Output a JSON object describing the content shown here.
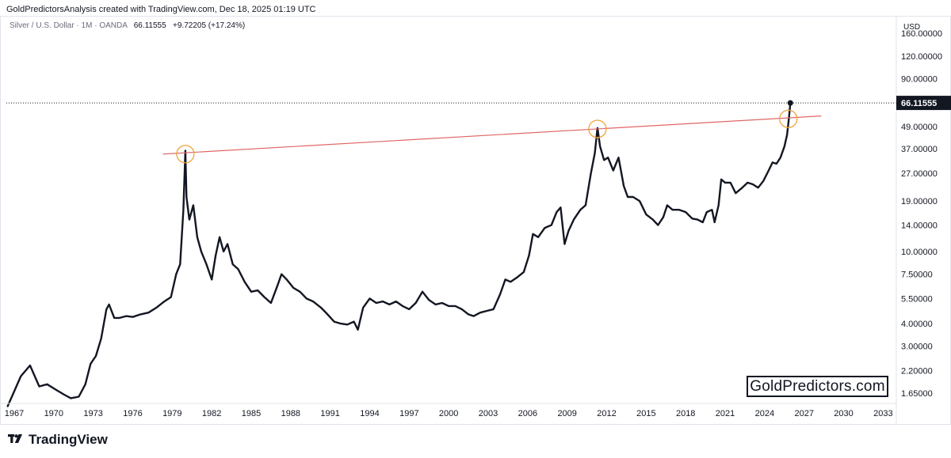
{
  "header": {
    "attribution": "GoldPredictorsAnalysis created with TradingView.com, Dec 18, 2025 01:19 UTC"
  },
  "symbol": {
    "name": "Silver / U.S. Dollar · 1M · OANDA",
    "last": "66.11555",
    "change": "+9.72205 (+17.24%)"
  },
  "currency": "USD",
  "last_price_label": "66.11555",
  "watermark": "GoldPredictors.com",
  "branding": "TradingView",
  "colors": {
    "price_line": "#131722",
    "trendline": "#e06666",
    "circle": "#f0a33b",
    "last_badge_bg": "#131722",
    "grid": "#ffffff"
  },
  "chart_data": {
    "type": "line",
    "scale": "log",
    "x_ticks": [
      "1967",
      "1970",
      "1973",
      "1976",
      "1979",
      "1982",
      "1985",
      "1988",
      "1991",
      "1994",
      "1997",
      "2000",
      "2003",
      "2006",
      "2009",
      "2012",
      "2015",
      "2018",
      "2021",
      "2024",
      "2027",
      "2030",
      "2033"
    ],
    "y_ticks": [
      "160.00000",
      "120.00000",
      "90.00000",
      "66.11555",
      "49.00000",
      "37.00000",
      "27.00000",
      "19.00000",
      "14.00000",
      "10.00000",
      "7.50000",
      "5.50000",
      "4.00000",
      "3.00000",
      "2.20000",
      "1.65000"
    ],
    "series": [
      {
        "x": [
          1966.5,
          1967.5,
          1968.2,
          1968.9,
          1969.5,
          1970.2,
          1970.8,
          1971.3,
          1971.9,
          1972.4,
          1972.8,
          1973.2,
          1973.6,
          1974.0,
          1974.2,
          1974.6,
          1975.0,
          1975.5,
          1976.0,
          1976.6,
          1977.2,
          1977.8,
          1978.4,
          1978.9,
          1979.3,
          1979.6,
          1979.85,
          1980.0,
          1980.08,
          1980.3,
          1980.6,
          1980.9,
          1981.2,
          1981.6,
          1982.0,
          1982.3,
          1982.6,
          1982.9,
          1983.2,
          1983.6,
          1984.0,
          1984.5,
          1985.0,
          1985.5,
          1986.0,
          1986.5,
          1987.0,
          1987.3,
          1987.7,
          1988.2,
          1988.7,
          1989.2,
          1989.7,
          1990.3,
          1990.8,
          1991.3,
          1991.8,
          1992.3,
          1992.8,
          1993.1,
          1993.5,
          1994.0,
          1994.5,
          1995.0,
          1995.5,
          1996.0,
          1996.5,
          1997.0,
          1997.5,
          1998.0,
          1998.5,
          1999.0,
          1999.5,
          2000.0,
          2000.5,
          2001.0,
          2001.5,
          2001.9,
          2002.4,
          2002.9,
          2003.4,
          2003.9,
          2004.3,
          2004.7,
          2005.2,
          2005.7,
          2006.1,
          2006.4,
          2006.8,
          2007.3,
          2007.8,
          2008.2,
          2008.5,
          2008.8,
          2009.1,
          2009.5,
          2010.0,
          2010.4,
          2010.8,
          2011.1,
          2011.3,
          2011.5,
          2011.8,
          2012.1,
          2012.5,
          2012.9,
          2013.3,
          2013.6,
          2014.0,
          2014.5,
          2015.0,
          2015.5,
          2015.9,
          2016.3,
          2016.6,
          2017.0,
          2017.5,
          2018.0,
          2018.5,
          2018.9,
          2019.3,
          2019.6,
          2020.0,
          2020.2,
          2020.5,
          2020.7,
          2021.0,
          2021.4,
          2021.8,
          2022.3,
          2022.7,
          2023.1,
          2023.5,
          2023.9,
          2024.3,
          2024.6,
          2024.9,
          2025.2,
          2025.5,
          2025.7,
          2025.85,
          2025.95
        ],
        "y": [
          1.4,
          2.05,
          2.35,
          1.8,
          1.85,
          1.72,
          1.62,
          1.55,
          1.58,
          1.85,
          2.4,
          2.65,
          3.3,
          4.8,
          5.1,
          4.3,
          4.3,
          4.4,
          4.35,
          4.5,
          4.6,
          4.9,
          5.3,
          5.6,
          7.5,
          8.5,
          17.0,
          36.0,
          20.0,
          15.0,
          18.0,
          12.0,
          10.0,
          8.5,
          7.0,
          9.5,
          12.0,
          10.0,
          11.0,
          8.5,
          8.0,
          6.8,
          6.0,
          6.1,
          5.6,
          5.2,
          6.5,
          7.5,
          7.0,
          6.3,
          6.0,
          5.5,
          5.3,
          4.9,
          4.5,
          4.1,
          4.0,
          3.95,
          4.1,
          3.7,
          4.9,
          5.5,
          5.2,
          5.3,
          5.1,
          5.3,
          5.0,
          4.8,
          5.2,
          6.0,
          5.4,
          5.1,
          5.2,
          5.0,
          5.0,
          4.8,
          4.5,
          4.4,
          4.6,
          4.7,
          4.8,
          5.8,
          7.0,
          6.8,
          7.2,
          7.7,
          9.5,
          12.5,
          12.0,
          13.5,
          14.0,
          16.5,
          17.5,
          11.0,
          13.0,
          15.0,
          17.0,
          18.0,
          27.0,
          35.0,
          48.0,
          38.0,
          32.0,
          33.0,
          28.0,
          33.0,
          23.0,
          20.0,
          20.0,
          19.0,
          16.0,
          15.0,
          14.0,
          15.5,
          18.0,
          17.0,
          17.0,
          16.5,
          15.2,
          15.0,
          14.5,
          16.5,
          17.0,
          14.5,
          18.0,
          25.0,
          24.0,
          24.0,
          21.0,
          22.5,
          24.0,
          23.5,
          22.5,
          24.5,
          28.0,
          31.0,
          30.5,
          33.0,
          38.0,
          44.0,
          55.0,
          66.11555
        ]
      }
    ],
    "trendline": {
      "x": [
        1978.3,
        2028.3
      ],
      "y": [
        34.5,
        56.0
      ]
    },
    "markers": [
      {
        "x": 1980.0,
        "y": 34.5
      },
      {
        "x": 2011.3,
        "y": 47.5
      },
      {
        "x": 2025.8,
        "y": 54.0
      }
    ],
    "xlim": [
      1966.4,
      2034.0
    ],
    "ylim": [
      1.45,
      200
    ]
  }
}
